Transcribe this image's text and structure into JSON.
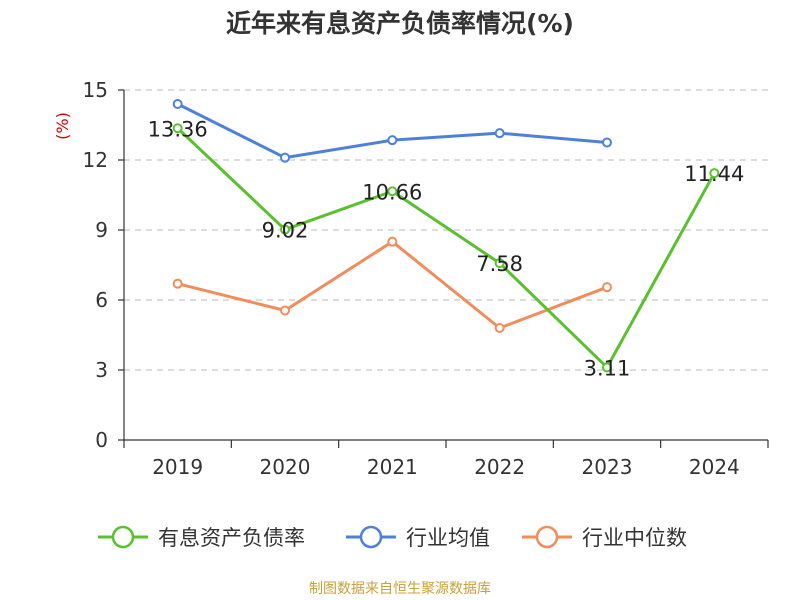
{
  "title": "近年来有息资产负债率情况(%)",
  "source": "制图数据来自恒生聚源数据库",
  "colors": {
    "title": "#333333",
    "unit": "#cc0000",
    "source": "#c8a03c",
    "grid": "#c8c8c8",
    "axis": "#333333"
  },
  "chart_data": {
    "type": "line",
    "ylabel": "(%)",
    "ylim": [
      0,
      15
    ],
    "yticks": [
      0,
      3,
      6,
      9,
      12,
      15
    ],
    "categories": [
      "2019",
      "2020",
      "2021",
      "2022",
      "2023",
      "2024"
    ],
    "grid": true,
    "legend_position": "bottom",
    "series": [
      {
        "name": "有息资产负债率",
        "color": "#5ac12e",
        "values": [
          13.36,
          9.02,
          10.66,
          7.58,
          3.11,
          11.44
        ],
        "labels": [
          "13.36",
          "9.02",
          "10.66",
          "7.58",
          "3.11",
          "11.44"
        ]
      },
      {
        "name": "行业均值",
        "color": "#4d80d9",
        "values": [
          14.4,
          12.1,
          12.85,
          13.15,
          12.75,
          null
        ]
      },
      {
        "name": "行业中位数",
        "color": "#f28c5b",
        "values": [
          6.7,
          5.55,
          8.5,
          4.8,
          6.55,
          null
        ]
      }
    ]
  }
}
